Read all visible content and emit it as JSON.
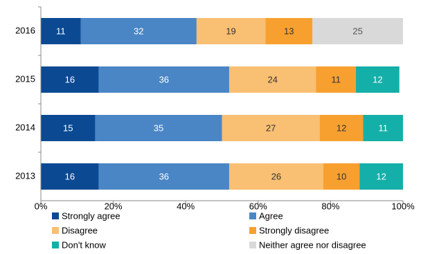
{
  "chart_data": {
    "type": "stacked-bar-horizontal",
    "categories": [
      "2016",
      "2015",
      "2014",
      "2013"
    ],
    "series": [
      {
        "name": "Strongly agree",
        "color": "#0b4a93",
        "text_color": "#ffffff",
        "values": [
          11,
          16,
          15,
          16
        ]
      },
      {
        "name": "Agree",
        "color": "#4a86c5",
        "text_color": "#ffffff",
        "values": [
          32,
          36,
          35,
          36
        ]
      },
      {
        "name": "Disagree",
        "color": "#f9bf72",
        "text_color": "#333333",
        "values": [
          19,
          24,
          27,
          26
        ]
      },
      {
        "name": "Strongly disagree",
        "color": "#f7a030",
        "text_color": "#333333",
        "values": [
          13,
          11,
          12,
          10
        ]
      },
      {
        "name": "Don't know",
        "color": "#14afa8",
        "text_color": "#ffffff",
        "values": [
          null,
          12,
          11,
          12
        ]
      },
      {
        "name": "Neither agree nor disagree",
        "color": "#d9d9d9",
        "text_color": "#555555",
        "values": [
          25,
          null,
          null,
          null
        ]
      }
    ],
    "xlim": [
      0,
      100
    ],
    "xticks": [
      {
        "value": 0,
        "label": "0%"
      },
      {
        "value": 20,
        "label": "20%"
      },
      {
        "value": 40,
        "label": "40%"
      },
      {
        "value": 60,
        "label": "60%"
      },
      {
        "value": 80,
        "label": "80%"
      },
      {
        "value": 100,
        "label": "100%"
      }
    ],
    "legend": "bottom"
  }
}
